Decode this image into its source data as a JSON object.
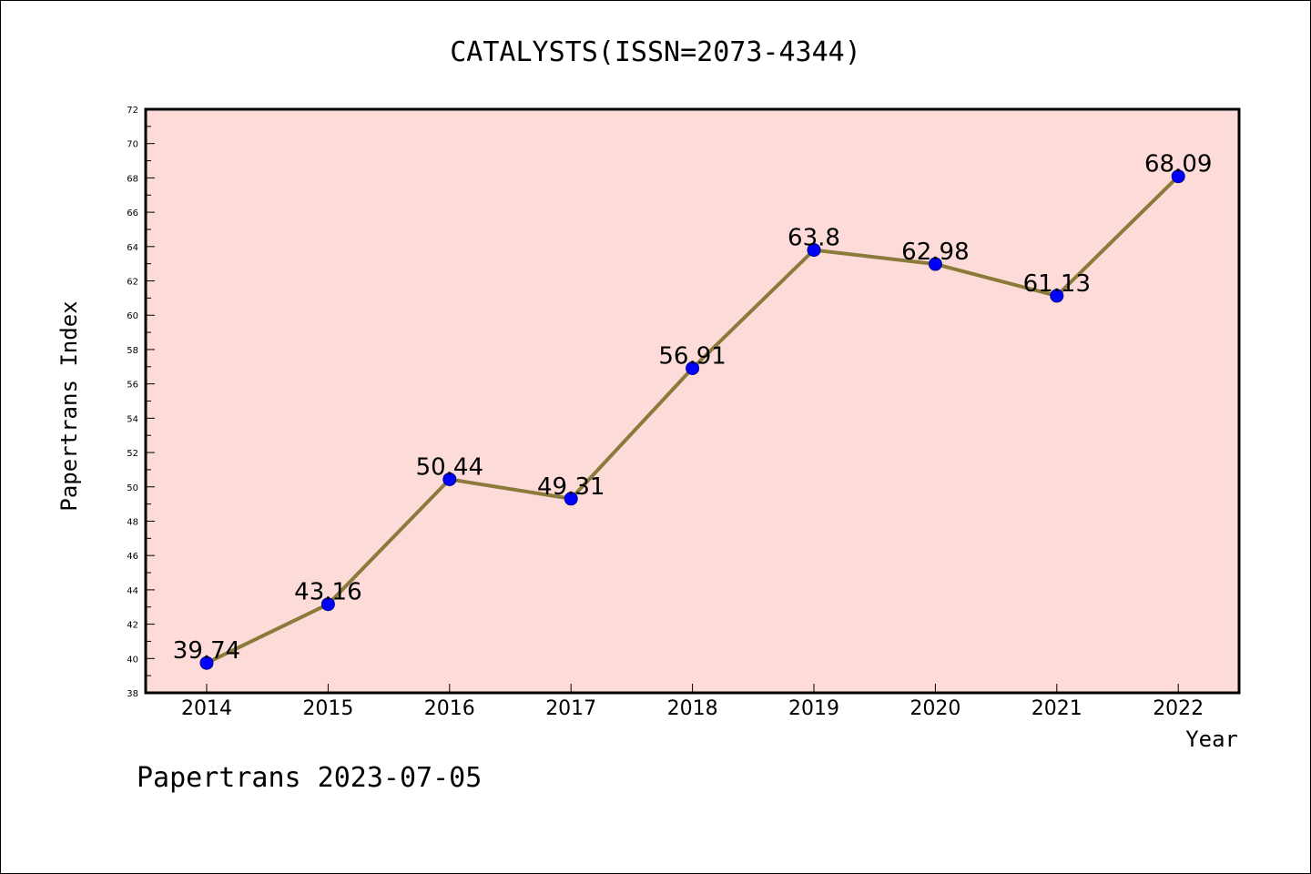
{
  "chart_data": {
    "type": "line",
    "title": "CATALYSTS(ISSN=2073-4344)",
    "xlabel": "Year",
    "ylabel": "Papertrans Index",
    "categories": [
      "2014",
      "2015",
      "2016",
      "2017",
      "2018",
      "2019",
      "2020",
      "2021",
      "2022"
    ],
    "values": [
      39.74,
      43.16,
      50.44,
      49.31,
      56.91,
      63.8,
      62.98,
      61.13,
      68.09
    ],
    "data_labels": [
      "39.74",
      "43.16",
      "50.44",
      "49.31",
      "56.91",
      "63.8",
      "62.98",
      "61.13",
      "68.09"
    ],
    "ylim": [
      38,
      72
    ],
    "yticks": [
      "38",
      "40",
      "42",
      "44",
      "46",
      "48",
      "50",
      "52",
      "54",
      "56",
      "58",
      "60",
      "62",
      "64",
      "66",
      "68",
      "70",
      "72"
    ],
    "grid": false,
    "legend": "none",
    "colors": {
      "plot_background": "#fddbd9",
      "line": "#8b7b3a",
      "marker": "#0000ff",
      "marker_edge": "#00008b",
      "axis": "#000000"
    }
  },
  "footer": "Papertrans 2023-07-05"
}
